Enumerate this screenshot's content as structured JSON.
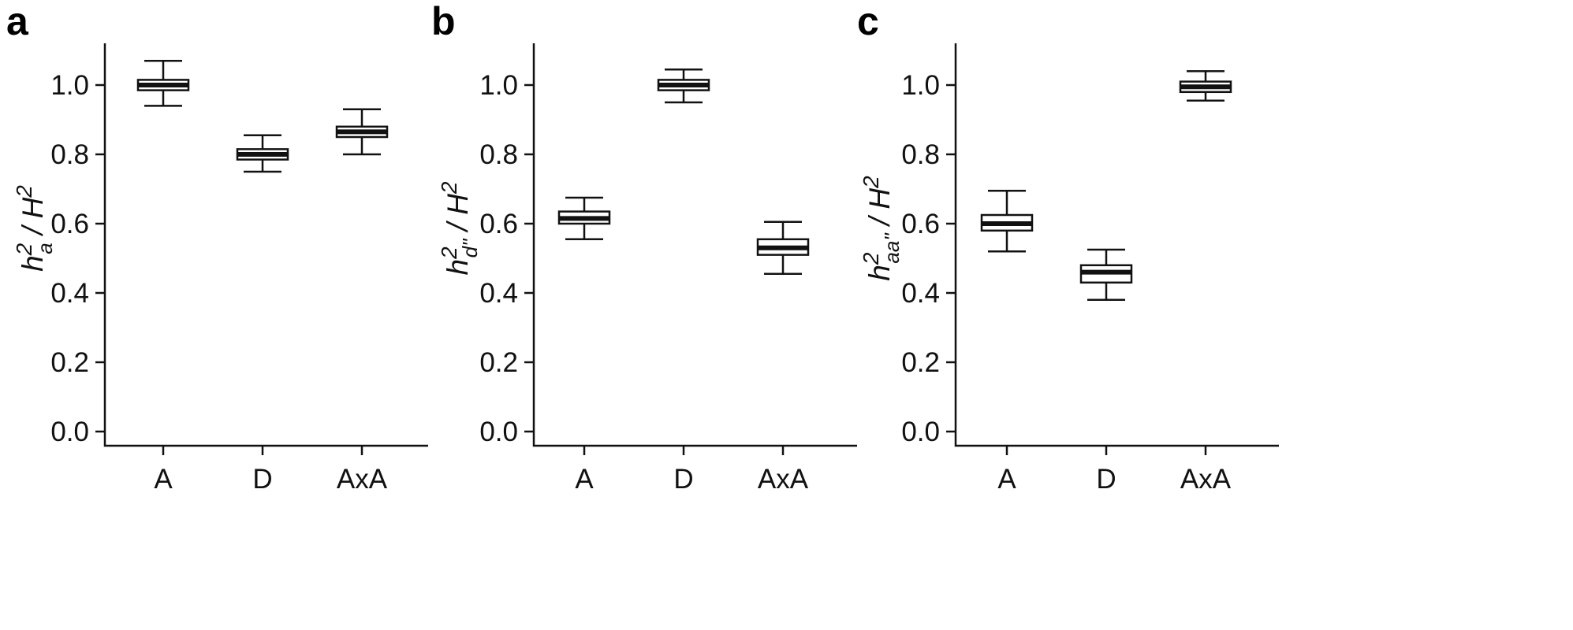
{
  "chart_data": [
    {
      "panel": "a",
      "type": "box",
      "ylabel": {
        "main": "h",
        "sup1": "2",
        "sub": "a",
        "rest": " / H",
        "sup2": "2"
      },
      "ylim": [
        0.0,
        1.1
      ],
      "yticks": [
        "0.0",
        "0.2",
        "0.4",
        "0.6",
        "0.8",
        "1.0"
      ],
      "categories": [
        "A",
        "D",
        "AxA"
      ],
      "boxes": [
        {
          "category": "A",
          "min": 0.94,
          "q1": 0.985,
          "median": 1.0,
          "q3": 1.015,
          "max": 1.07
        },
        {
          "category": "D",
          "min": 0.75,
          "q1": 0.785,
          "median": 0.8,
          "q3": 0.815,
          "max": 0.855
        },
        {
          "category": "AxA",
          "min": 0.8,
          "q1": 0.85,
          "median": 0.865,
          "q3": 0.88,
          "max": 0.93
        }
      ]
    },
    {
      "panel": "b",
      "type": "box",
      "ylabel": {
        "main": "h",
        "sup1": "2",
        "sub": "d\"",
        "rest": " / H",
        "sup2": "2"
      },
      "ylim": [
        0.0,
        1.1
      ],
      "yticks": [
        "0.0",
        "0.2",
        "0.4",
        "0.6",
        "0.8",
        "1.0"
      ],
      "categories": [
        "A",
        "D",
        "AxA"
      ],
      "boxes": [
        {
          "category": "A",
          "min": 0.555,
          "q1": 0.6,
          "median": 0.615,
          "q3": 0.635,
          "max": 0.675
        },
        {
          "category": "D",
          "min": 0.95,
          "q1": 0.985,
          "median": 1.0,
          "q3": 1.015,
          "max": 1.045
        },
        {
          "category": "AxA",
          "min": 0.455,
          "q1": 0.51,
          "median": 0.53,
          "q3": 0.555,
          "max": 0.605
        }
      ]
    },
    {
      "panel": "c",
      "type": "box",
      "ylabel": {
        "main": "h",
        "sup1": "2",
        "sub": "aa\"",
        "rest": " / H",
        "sup2": "2"
      },
      "ylim": [
        0.0,
        1.1
      ],
      "yticks": [
        "0.0",
        "0.2",
        "0.4",
        "0.6",
        "0.8",
        "1.0"
      ],
      "categories": [
        "A",
        "D",
        "AxA"
      ],
      "boxes": [
        {
          "category": "A",
          "min": 0.52,
          "q1": 0.58,
          "median": 0.6,
          "q3": 0.625,
          "max": 0.695
        },
        {
          "category": "D",
          "min": 0.38,
          "q1": 0.43,
          "median": 0.46,
          "q3": 0.48,
          "max": 0.525
        },
        {
          "category": "AxA",
          "min": 0.955,
          "q1": 0.98,
          "median": 0.995,
          "q3": 1.01,
          "max": 1.04
        }
      ]
    }
  ]
}
